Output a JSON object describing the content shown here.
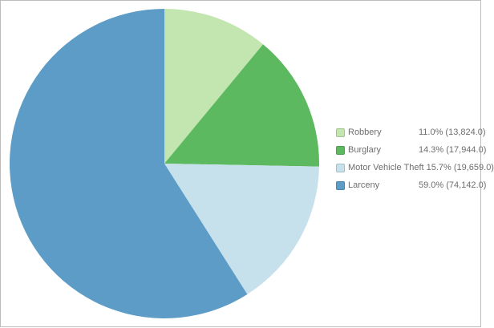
{
  "chart_data": {
    "type": "pie",
    "title": "",
    "start_angle_deg": 0,
    "direction": "clockwise",
    "legend_position": "right",
    "slices": [
      {
        "label": "Robbery",
        "percent": 11.0,
        "value": 13824.0,
        "display": "11.0% (13,824.0)",
        "color": "#c3e5af"
      },
      {
        "label": "Burglary",
        "percent": 14.3,
        "value": 17944.0,
        "display": "14.3% (17,944.0)",
        "color": "#5cb95f"
      },
      {
        "label": "Motor Vehicle Theft",
        "percent": 15.7,
        "value": 19659.0,
        "display": "15.7% (19,659.0)",
        "color": "#c6e0ec"
      },
      {
        "label": "Larceny",
        "percent": 59.0,
        "value": 74142.0,
        "display": "59.0% (74,142.0)",
        "color": "#5c9cc6"
      }
    ]
  }
}
